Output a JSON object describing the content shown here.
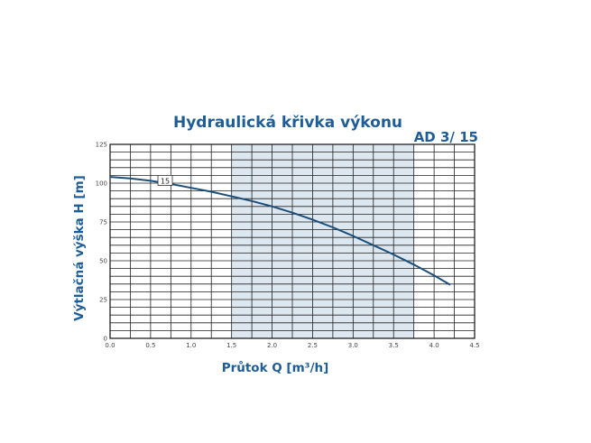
{
  "chart_data": {
    "type": "line",
    "title": "Hydraulická křivka výkonu",
    "model": "AD 3/ 15",
    "xlabel": "Průtok Q [m³/h]",
    "ylabel": "Výtlačná výška H [m]",
    "xlim": [
      0,
      4.5
    ],
    "ylim": [
      0,
      125
    ],
    "xticks": [
      "0.0",
      "0.5",
      "1.0",
      "1.5",
      "2.0",
      "2.5",
      "3.0",
      "3.5",
      "4.0",
      "4.5"
    ],
    "yticks": [
      "0",
      "25",
      "50",
      "75",
      "100",
      "125"
    ],
    "grid": true,
    "shaded_range": [
      1.5,
      3.75
    ],
    "series": [
      {
        "name": "15",
        "x": [
          0.0,
          0.25,
          0.5,
          0.75,
          1.0,
          1.25,
          1.5,
          1.75,
          2.0,
          2.25,
          2.5,
          2.75,
          3.0,
          3.25,
          3.5,
          3.75,
          4.0,
          4.2
        ],
        "y": [
          104,
          103,
          101.5,
          99.5,
          97,
          94.5,
          91.5,
          88.5,
          85,
          81,
          76.5,
          71.5,
          66,
          60,
          54,
          47.5,
          40.5,
          34.5
        ]
      }
    ]
  },
  "colors": {
    "accent": "#1f5d97",
    "curve": "#1b4f7a",
    "shade": "#dce7f0",
    "grid": "#222222"
  }
}
